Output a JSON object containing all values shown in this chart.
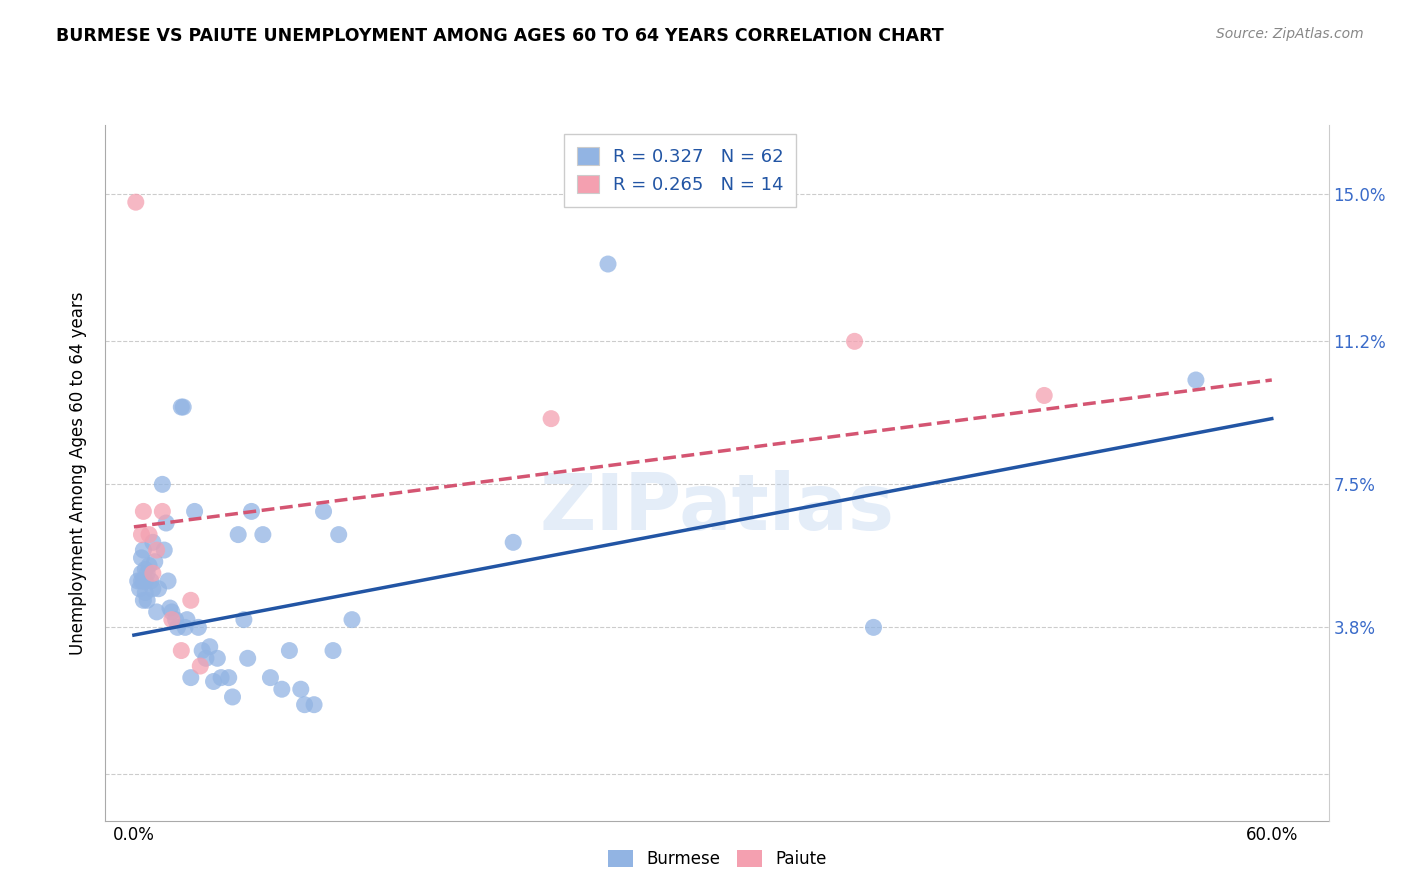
{
  "title": "BURMESE VS PAIUTE UNEMPLOYMENT AMONG AGES 60 TO 64 YEARS CORRELATION CHART",
  "source": "Source: ZipAtlas.com",
  "ylabel": "Unemployment Among Ages 60 to 64 years",
  "xlim": [
    -0.015,
    0.63
  ],
  "ylim": [
    -0.012,
    0.168
  ],
  "y_ticks": [
    0.0,
    0.038,
    0.075,
    0.112,
    0.15
  ],
  "y_tick_labels": [
    "",
    "3.8%",
    "7.5%",
    "11.2%",
    "15.0%"
  ],
  "x_tick_positions": [
    0.0,
    0.6
  ],
  "x_tick_labels": [
    "0.0%",
    "60.0%"
  ],
  "watermark": "ZIPatlas",
  "burmese_color": "#92b4e3",
  "paiute_color": "#f4a0b0",
  "burmese_line_color": "#2255a4",
  "paiute_line_color": "#d45572",
  "burmese_r": "R = 0.327",
  "burmese_n": "N = 62",
  "paiute_r": "R = 0.265",
  "paiute_n": "N = 14",
  "burmese_x": [
    0.002,
    0.003,
    0.004,
    0.004,
    0.004,
    0.005,
    0.005,
    0.005,
    0.006,
    0.006,
    0.006,
    0.007,
    0.007,
    0.008,
    0.009,
    0.01,
    0.01,
    0.011,
    0.012,
    0.013,
    0.015,
    0.016,
    0.017,
    0.018,
    0.019,
    0.02,
    0.022,
    0.023,
    0.025,
    0.026,
    0.027,
    0.028,
    0.03,
    0.032,
    0.034,
    0.036,
    0.038,
    0.04,
    0.042,
    0.044,
    0.046,
    0.05,
    0.052,
    0.055,
    0.058,
    0.06,
    0.062,
    0.068,
    0.072,
    0.078,
    0.082,
    0.088,
    0.09,
    0.095,
    0.1,
    0.105,
    0.108,
    0.115,
    0.2,
    0.25,
    0.39,
    0.56
  ],
  "burmese_y": [
    0.05,
    0.048,
    0.056,
    0.052,
    0.05,
    0.058,
    0.05,
    0.045,
    0.053,
    0.05,
    0.047,
    0.052,
    0.045,
    0.054,
    0.05,
    0.048,
    0.06,
    0.055,
    0.042,
    0.048,
    0.075,
    0.058,
    0.065,
    0.05,
    0.043,
    0.042,
    0.04,
    0.038,
    0.095,
    0.095,
    0.038,
    0.04,
    0.025,
    0.068,
    0.038,
    0.032,
    0.03,
    0.033,
    0.024,
    0.03,
    0.025,
    0.025,
    0.02,
    0.062,
    0.04,
    0.03,
    0.068,
    0.062,
    0.025,
    0.022,
    0.032,
    0.022,
    0.018,
    0.018,
    0.068,
    0.032,
    0.062,
    0.04,
    0.06,
    0.132,
    0.038,
    0.102
  ],
  "paiute_x": [
    0.001,
    0.004,
    0.005,
    0.008,
    0.01,
    0.012,
    0.015,
    0.02,
    0.025,
    0.03,
    0.035,
    0.22,
    0.38,
    0.48
  ],
  "paiute_y": [
    0.148,
    0.062,
    0.068,
    0.062,
    0.052,
    0.058,
    0.068,
    0.04,
    0.032,
    0.045,
    0.028,
    0.092,
    0.112,
    0.098
  ],
  "burmese_trendline_x": [
    0.0,
    0.6
  ],
  "burmese_trendline_y": [
    0.036,
    0.092
  ],
  "paiute_trendline_x": [
    0.0,
    0.6
  ],
  "paiute_trendline_y": [
    0.064,
    0.102
  ]
}
